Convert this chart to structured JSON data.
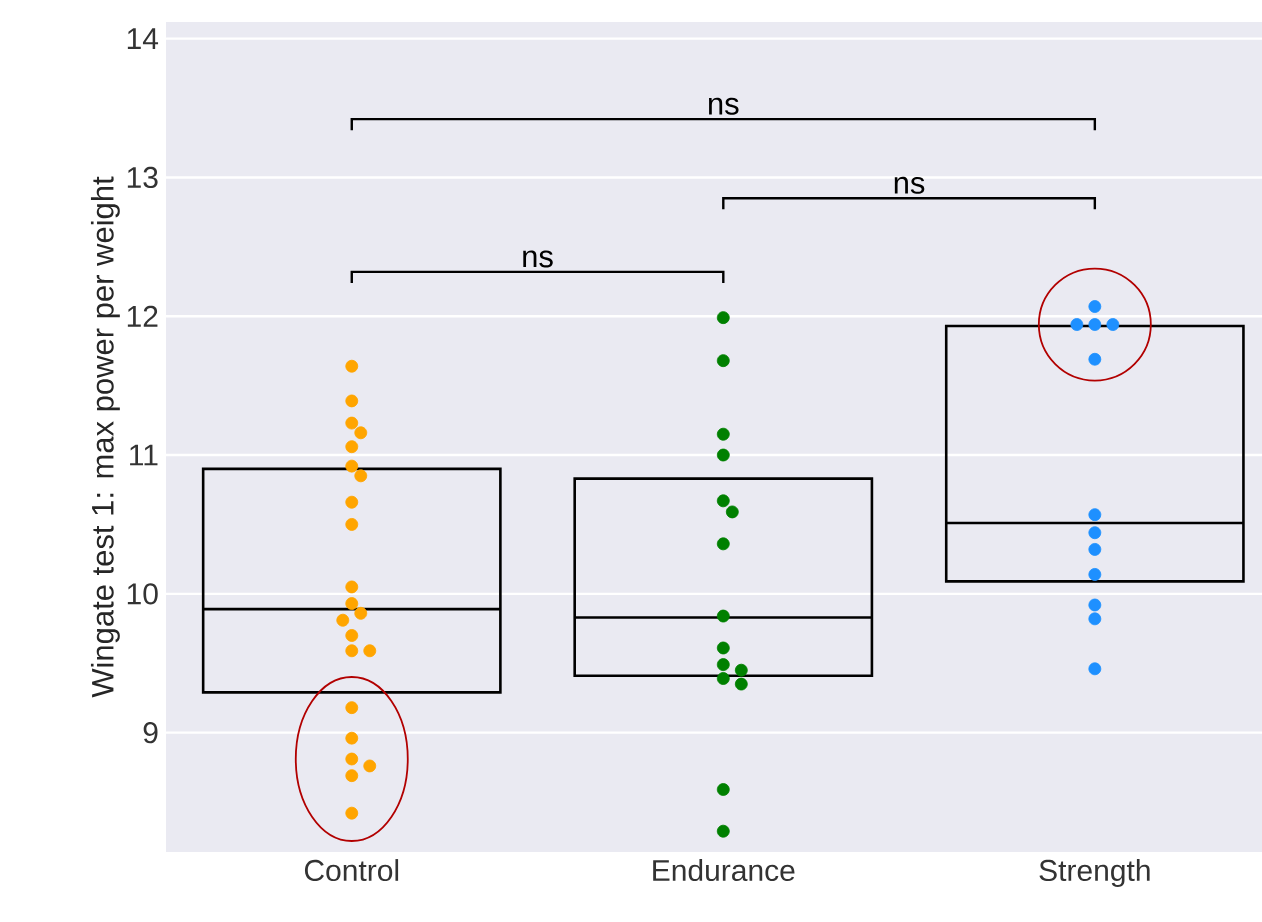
{
  "chart_data": {
    "type": "box",
    "ylabel": "Wingate test 1: max power per weight",
    "categories": [
      "Control",
      "Endurance",
      "Strength"
    ],
    "boxes": [
      {
        "low": 9.29,
        "q1": 9.29,
        "median": 9.89,
        "q3": 10.9,
        "high": 10.9
      },
      {
        "low": 9.41,
        "q1": 9.41,
        "median": 9.83,
        "q3": 10.83,
        "high": 10.83
      },
      {
        "low": 10.09,
        "q1": 10.09,
        "median": 10.51,
        "q3": 11.93,
        "high": 11.93
      }
    ],
    "series": [
      {
        "type": "scatter",
        "color": "#ffa500",
        "x": [
          "Control",
          "Control",
          "Control",
          "Control",
          "Control",
          "Control",
          "Control",
          "Control",
          "Control",
          "Control",
          "Control",
          "Control",
          "Control",
          "Control",
          "Control",
          "Control",
          "Control",
          "Control",
          "Control",
          "Control",
          "Control",
          "Control"
        ],
        "values": [
          11.64,
          11.39,
          11.23,
          11.16,
          11.06,
          10.92,
          10.85,
          10.66,
          10.5,
          10.05,
          9.93,
          9.86,
          9.81,
          9.7,
          9.59,
          9.59,
          9.18,
          8.96,
          8.81,
          8.76,
          8.69,
          8.42
        ]
      },
      {
        "type": "scatter",
        "color": "#008000",
        "x": [
          "Endurance",
          "Endurance",
          "Endurance",
          "Endurance",
          "Endurance",
          "Endurance",
          "Endurance",
          "Endurance",
          "Endurance",
          "Endurance",
          "Endurance",
          "Endurance",
          "Endurance",
          "Endurance",
          "Endurance"
        ],
        "values": [
          11.99,
          11.68,
          11.15,
          11.0,
          10.67,
          10.59,
          10.36,
          9.84,
          9.61,
          9.49,
          9.45,
          9.39,
          9.35,
          8.59,
          8.29
        ]
      },
      {
        "type": "scatter",
        "color": "#1e90ff",
        "x": [
          "Strength",
          "Strength",
          "Strength",
          "Strength",
          "Strength",
          "Strength",
          "Strength",
          "Strength",
          "Strength",
          "Strength",
          "Strength",
          "Strength"
        ],
        "values": [
          12.07,
          11.94,
          11.94,
          11.94,
          11.69,
          10.57,
          10.44,
          10.32,
          10.14,
          9.92,
          9.82,
          9.46
        ]
      }
    ],
    "ylim": [
      8.14,
      14.12
    ],
    "yticks": [
      9,
      10,
      11,
      12,
      13,
      14
    ],
    "grid": "y",
    "marker": "circle",
    "annotations": [
      "ns",
      "ns",
      "ns"
    ]
  }
}
